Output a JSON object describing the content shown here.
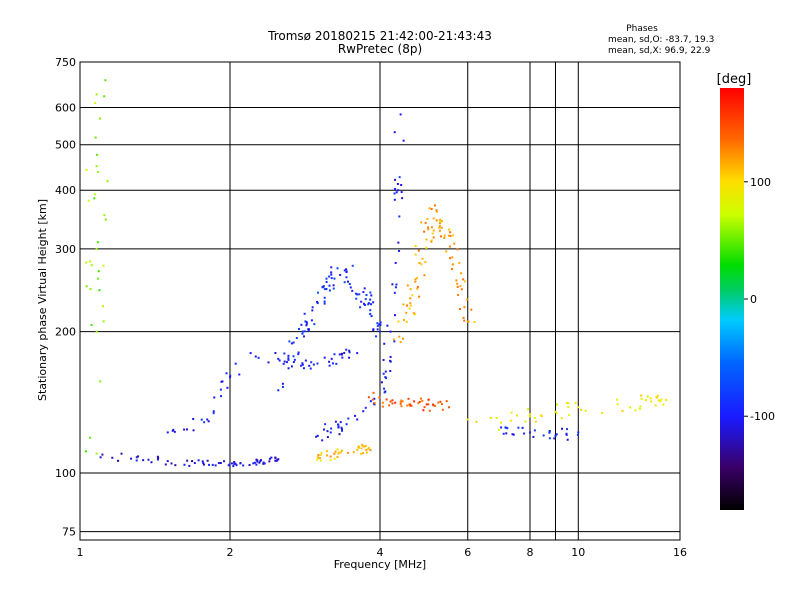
{
  "chart_data": {
    "type": "scatter",
    "title_line1": "Tromsø 20180215 21:42:00-21:43:43",
    "title_line2": "RwPretec (8p)",
    "xlabel": "Frequency [MHz]",
    "ylabel": "Stationary phase Virtual Height [km]",
    "x_scale": "log",
    "y_scale": "log",
    "xlim": [
      1,
      16
    ],
    "ylim": [
      72,
      750
    ],
    "x_ticks": [
      1,
      2,
      4,
      6,
      8,
      10,
      16
    ],
    "x_tick_labels": [
      "1",
      "2",
      "4",
      "6",
      "8",
      "10",
      "16"
    ],
    "x_grid": [
      1,
      2,
      4,
      6,
      8,
      9,
      10,
      16
    ],
    "y_ticks": [
      75,
      100,
      200,
      300,
      400,
      500,
      600,
      750
    ],
    "y_tick_labels": [
      "75",
      "100",
      "200",
      "300",
      "400",
      "500",
      "600",
      "750"
    ],
    "grid": true,
    "stats": {
      "heading": "Phases",
      "line1": "mean, sd,O: -83.7, 19.3",
      "line2": "mean, sd,X:  96.9, 22.9"
    },
    "colorbar": {
      "label": "[deg]",
      "range": [
        -180,
        180
      ],
      "ticks": [
        100,
        0,
        -100
      ],
      "tick_labels": [
        "100",
        "0",
        "-100"
      ]
    },
    "series": [
      {
        "phase": -110,
        "spread": 0.012,
        "seed": 11,
        "count": 60,
        "points": [
          [
            1.1,
            108
          ],
          [
            1.3,
            108
          ],
          [
            1.5,
            106
          ],
          [
            1.7,
            105
          ],
          [
            1.9,
            105
          ],
          [
            2.1,
            105
          ],
          [
            2.3,
            106
          ],
          [
            2.5,
            107
          ]
        ]
      },
      {
        "phase": -100,
        "spread": 0.02,
        "seed": 12,
        "count": 60,
        "points": [
          [
            1.5,
            122
          ],
          [
            1.8,
            130
          ],
          [
            2.0,
            160
          ],
          [
            2.2,
            180
          ],
          [
            2.5,
            175
          ],
          [
            2.8,
            170
          ],
          [
            3.2,
            175
          ],
          [
            3.6,
            180
          ]
        ]
      },
      {
        "phase": -90,
        "spread": 0.03,
        "seed": 13,
        "count": 90,
        "points": [
          [
            2.5,
            150
          ],
          [
            2.8,
            200
          ],
          [
            3.0,
            230
          ],
          [
            3.2,
            260
          ],
          [
            3.4,
            270
          ],
          [
            3.6,
            240
          ],
          [
            3.8,
            230
          ],
          [
            4.0,
            200
          ]
        ]
      },
      {
        "phase": -100,
        "spread": 0.025,
        "seed": 14,
        "count": 60,
        "points": [
          [
            3.0,
            120
          ],
          [
            3.3,
            125
          ],
          [
            3.6,
            130
          ],
          [
            3.9,
            140
          ],
          [
            4.1,
            160
          ],
          [
            4.2,
            200
          ],
          [
            4.3,
            280
          ],
          [
            4.35,
            400
          ],
          [
            4.4,
            580
          ]
        ]
      },
      {
        "phase": 110,
        "spread": 0.015,
        "seed": 15,
        "count": 35,
        "points": [
          [
            3.0,
            108
          ],
          [
            3.3,
            110
          ],
          [
            3.6,
            112
          ],
          [
            3.8,
            113
          ]
        ]
      },
      {
        "phase": 120,
        "spread": 0.035,
        "seed": 16,
        "count": 90,
        "points": [
          [
            4.4,
            190
          ],
          [
            4.6,
            230
          ],
          [
            4.8,
            280
          ],
          [
            5.0,
            330
          ],
          [
            5.2,
            360
          ],
          [
            5.5,
            320
          ],
          [
            5.8,
            250
          ],
          [
            6.0,
            210
          ]
        ]
      },
      {
        "phase": 150,
        "spread": 0.02,
        "seed": 17,
        "count": 40,
        "points": [
          [
            3.8,
            145
          ],
          [
            4.2,
            142
          ],
          [
            4.6,
            140
          ],
          [
            5.0,
            140
          ],
          [
            5.5,
            138
          ]
        ]
      },
      {
        "phase": 90,
        "spread": 0.025,
        "seed": 18,
        "count": 45,
        "points": [
          [
            6.0,
            130
          ],
          [
            7.0,
            128
          ],
          [
            8.0,
            132
          ],
          [
            9.0,
            135
          ],
          [
            10.0,
            138
          ],
          [
            12.0,
            140
          ],
          [
            14.0,
            142
          ],
          [
            15.0,
            143
          ]
        ]
      },
      {
        "phase": -95,
        "spread": 0.02,
        "seed": 19,
        "count": 25,
        "points": [
          [
            7.0,
            125
          ],
          [
            8.0,
            122
          ],
          [
            9.0,
            120
          ],
          [
            10.0,
            122
          ]
        ]
      },
      {
        "phase": 60,
        "spread": 0.05,
        "seed": 20,
        "count": 30,
        "points": [
          [
            1.08,
            110
          ],
          [
            1.08,
            200
          ],
          [
            1.08,
            300
          ],
          [
            1.08,
            450
          ],
          [
            1.08,
            640
          ]
        ]
      }
    ]
  }
}
